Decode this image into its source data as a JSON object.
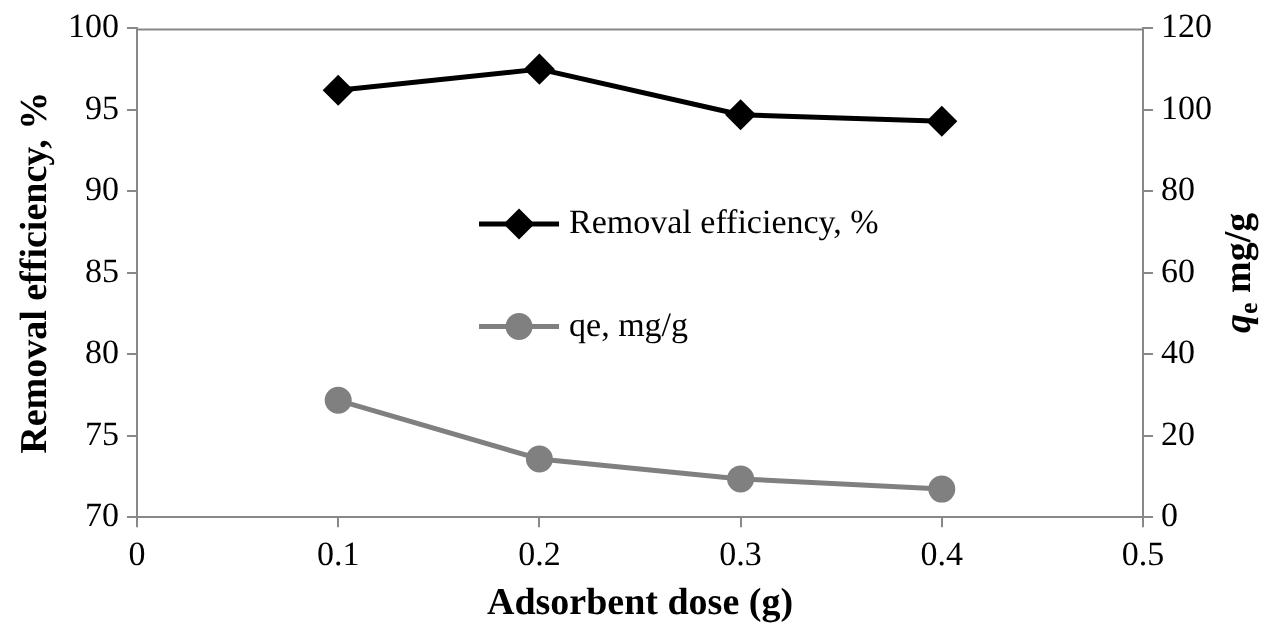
{
  "chart_data": {
    "type": "line",
    "xlabel": "Adsorbent dose (g)",
    "ylabel": "Removal efficiency, %",
    "y2label": "q$_{e}$ mg/g",
    "x": [
      0.1,
      0.2,
      0.3,
      0.4
    ],
    "series": [
      {
        "name": "Removal efficiency, %",
        "color": "#000000",
        "marker": "diamond",
        "values": [
          96.2,
          97.5,
          94.7,
          94.3
        ]
      },
      {
        "name": "qe, mg/g",
        "color": "#808080",
        "marker": "circle",
        "axis": "y2",
        "values": [
          28.7,
          14.3,
          9.4,
          6.9
        ]
      }
    ],
    "xlim": [
      0,
      0.5
    ],
    "xticks": [
      0,
      0.1,
      0.2,
      0.3,
      0.4,
      0.5
    ],
    "ylim": [
      70,
      100
    ],
    "yticks": [
      70,
      75,
      80,
      85,
      90,
      95,
      100
    ],
    "y2lim": [
      0,
      120
    ],
    "y2ticks": [
      0,
      20,
      40,
      60,
      80,
      100,
      120
    ],
    "grid": false,
    "legend": "center",
    "line_style": "solid"
  }
}
